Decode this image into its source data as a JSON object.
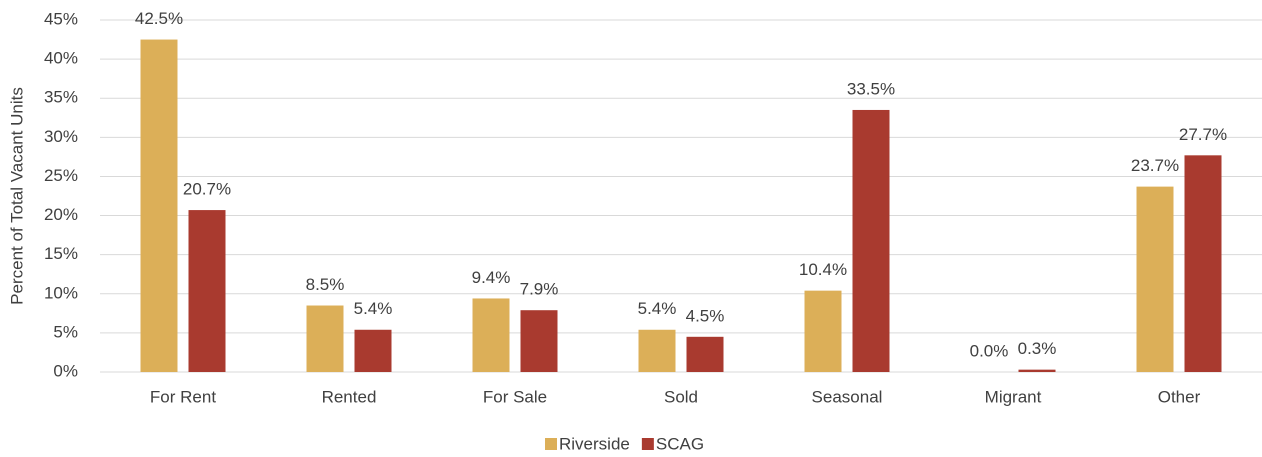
{
  "chart_data": {
    "type": "bar",
    "y_label": "Percent of Total Vacant Units",
    "categories": [
      "For Rent",
      "Rented",
      "For Sale",
      "Sold",
      "Seasonal",
      "Migrant",
      "Other"
    ],
    "series": [
      {
        "name": "Riverside",
        "color": "#dcaf58",
        "values": [
          42.5,
          8.5,
          9.4,
          5.4,
          10.4,
          0.0,
          23.7
        ],
        "value_labels": [
          "42.5%",
          "8.5%",
          "9.4%",
          "5.4%",
          "10.4%",
          "0.0%",
          "23.7%"
        ]
      },
      {
        "name": "SCAG",
        "color": "#a93a2f",
        "values": [
          20.7,
          5.4,
          7.9,
          4.5,
          33.5,
          0.3,
          27.7
        ],
        "value_labels": [
          "20.7%",
          "5.4%",
          "7.9%",
          "4.5%",
          "33.5%",
          "0.3%",
          "27.7%"
        ]
      }
    ],
    "ylim": [
      0,
      45
    ],
    "yticks": [
      {
        "value": 0,
        "label": "0%"
      },
      {
        "value": 5,
        "label": "5%"
      },
      {
        "value": 10,
        "label": "10%"
      },
      {
        "value": 15,
        "label": "15%"
      },
      {
        "value": 20,
        "label": "20%"
      },
      {
        "value": 25,
        "label": "25%"
      },
      {
        "value": 30,
        "label": "30%"
      },
      {
        "value": 35,
        "label": "35%"
      },
      {
        "value": 40,
        "label": "40%"
      },
      {
        "value": 45,
        "label": "45%"
      }
    ],
    "grid": true,
    "legend": "bottom"
  }
}
